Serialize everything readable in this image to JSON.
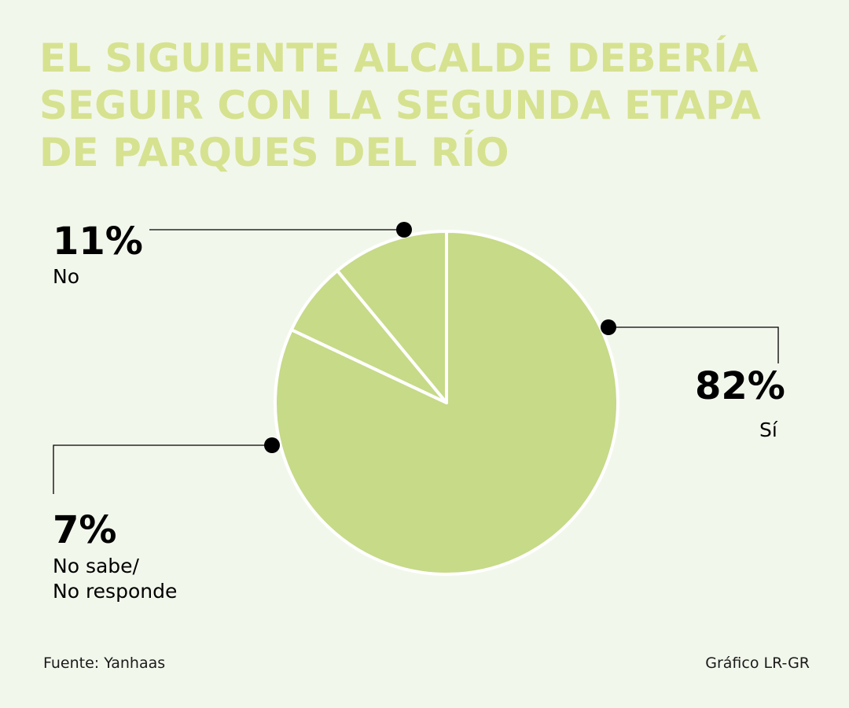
{
  "colors": {
    "background": "#f2f7ec",
    "title": "#d6e28f",
    "slice_fill": "#c6da88",
    "slice_stroke": "#ffffff",
    "leader": "#000000"
  },
  "chart_data": {
    "type": "pie",
    "title": "EL SIGUIENTE ALCALDE DEBERÍA SEGUIR CON LA SEGUNDA ETAPA DE PARQUES DEL RÍO",
    "title_lines": [
      "EL SIGUIENTE ALCALDE DEBERÍA",
      "SEGUIR CON LA SEGUNDA ETAPA",
      "DE PARQUES DEL RÍO"
    ],
    "slices": [
      {
        "label": "Sí",
        "value": 82,
        "value_label": "82%"
      },
      {
        "label": "No sabe/ No responde",
        "label_lines": [
          "No sabe/",
          "No responde"
        ],
        "value": 7,
        "value_label": "7%"
      },
      {
        "label": "No",
        "value": 11,
        "value_label": "11%"
      }
    ],
    "start": "top",
    "direction": "clockwise"
  },
  "footer": {
    "source": "Fuente: Yanhaas",
    "credit": "Gráfico LR-GR"
  }
}
